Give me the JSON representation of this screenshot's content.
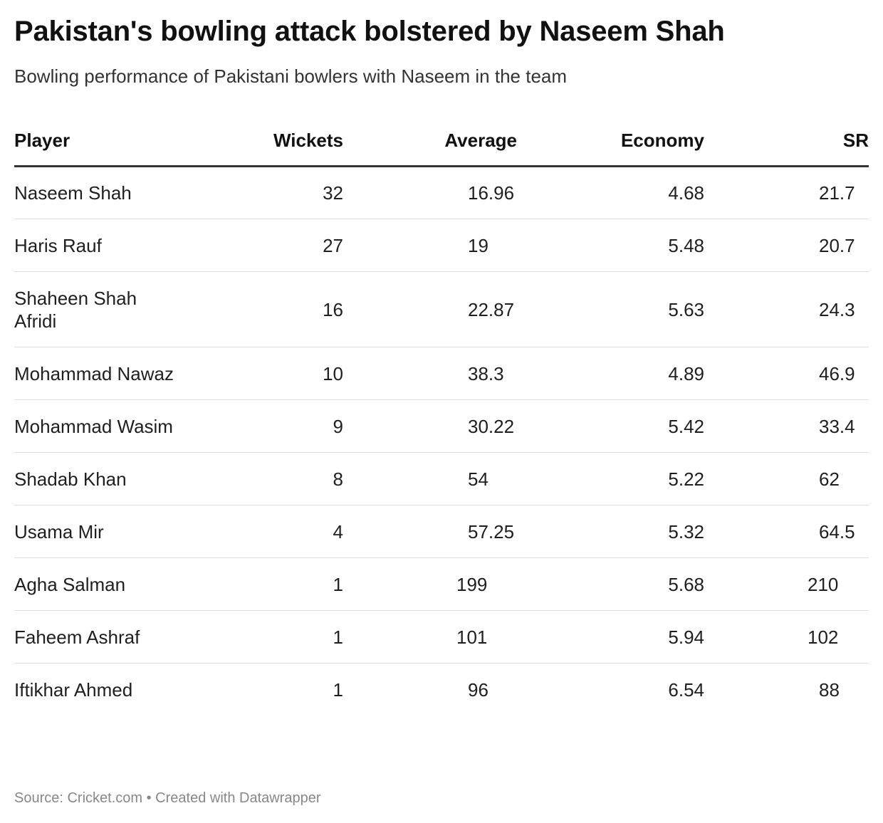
{
  "title": "Pakistan's bowling attack bolstered by Naseem Shah",
  "subtitle": "Bowling performance of Pakistani bowlers with Naseem in the team",
  "source": "Source: Cricket.com • Created with Datawrapper",
  "chart_data": {
    "type": "table",
    "title": "Pakistan's bowling attack bolstered by Naseem Shah",
    "subtitle": "Bowling performance of Pakistani bowlers with Naseem in the team",
    "columns": [
      "Player",
      "Wickets",
      "Average",
      "Economy",
      "SR"
    ],
    "rows": [
      {
        "player": "Naseem Shah",
        "wickets": "32",
        "average": "16.96",
        "economy": "4.68",
        "sr": "21.7"
      },
      {
        "player": "Haris Rauf",
        "wickets": "27",
        "average": "19",
        "economy": "5.48",
        "sr": "20.7"
      },
      {
        "player": "Shaheen Shah Afridi",
        "wickets": "16",
        "average": "22.87",
        "economy": "5.63",
        "sr": "24.3"
      },
      {
        "player": "Mohammad Nawaz",
        "wickets": "10",
        "average": "38.3",
        "economy": "4.89",
        "sr": "46.9"
      },
      {
        "player": "Mohammad Wasim",
        "wickets": "9",
        "average": "30.22",
        "economy": "5.42",
        "sr": "33.4"
      },
      {
        "player": "Shadab Khan",
        "wickets": "8",
        "average": "54",
        "economy": "5.22",
        "sr": "62"
      },
      {
        "player": "Usama Mir",
        "wickets": "4",
        "average": "57.25",
        "economy": "5.32",
        "sr": "64.5"
      },
      {
        "player": "Agha Salman",
        "wickets": "1",
        "average": "199",
        "economy": "5.68",
        "sr": "210"
      },
      {
        "player": "Faheem Ashraf",
        "wickets": "1",
        "average": "101",
        "economy": "5.94",
        "sr": "102"
      },
      {
        "player": "Iftikhar Ahmed",
        "wickets": "1",
        "average": "96",
        "economy": "6.54",
        "sr": "88"
      }
    ]
  }
}
